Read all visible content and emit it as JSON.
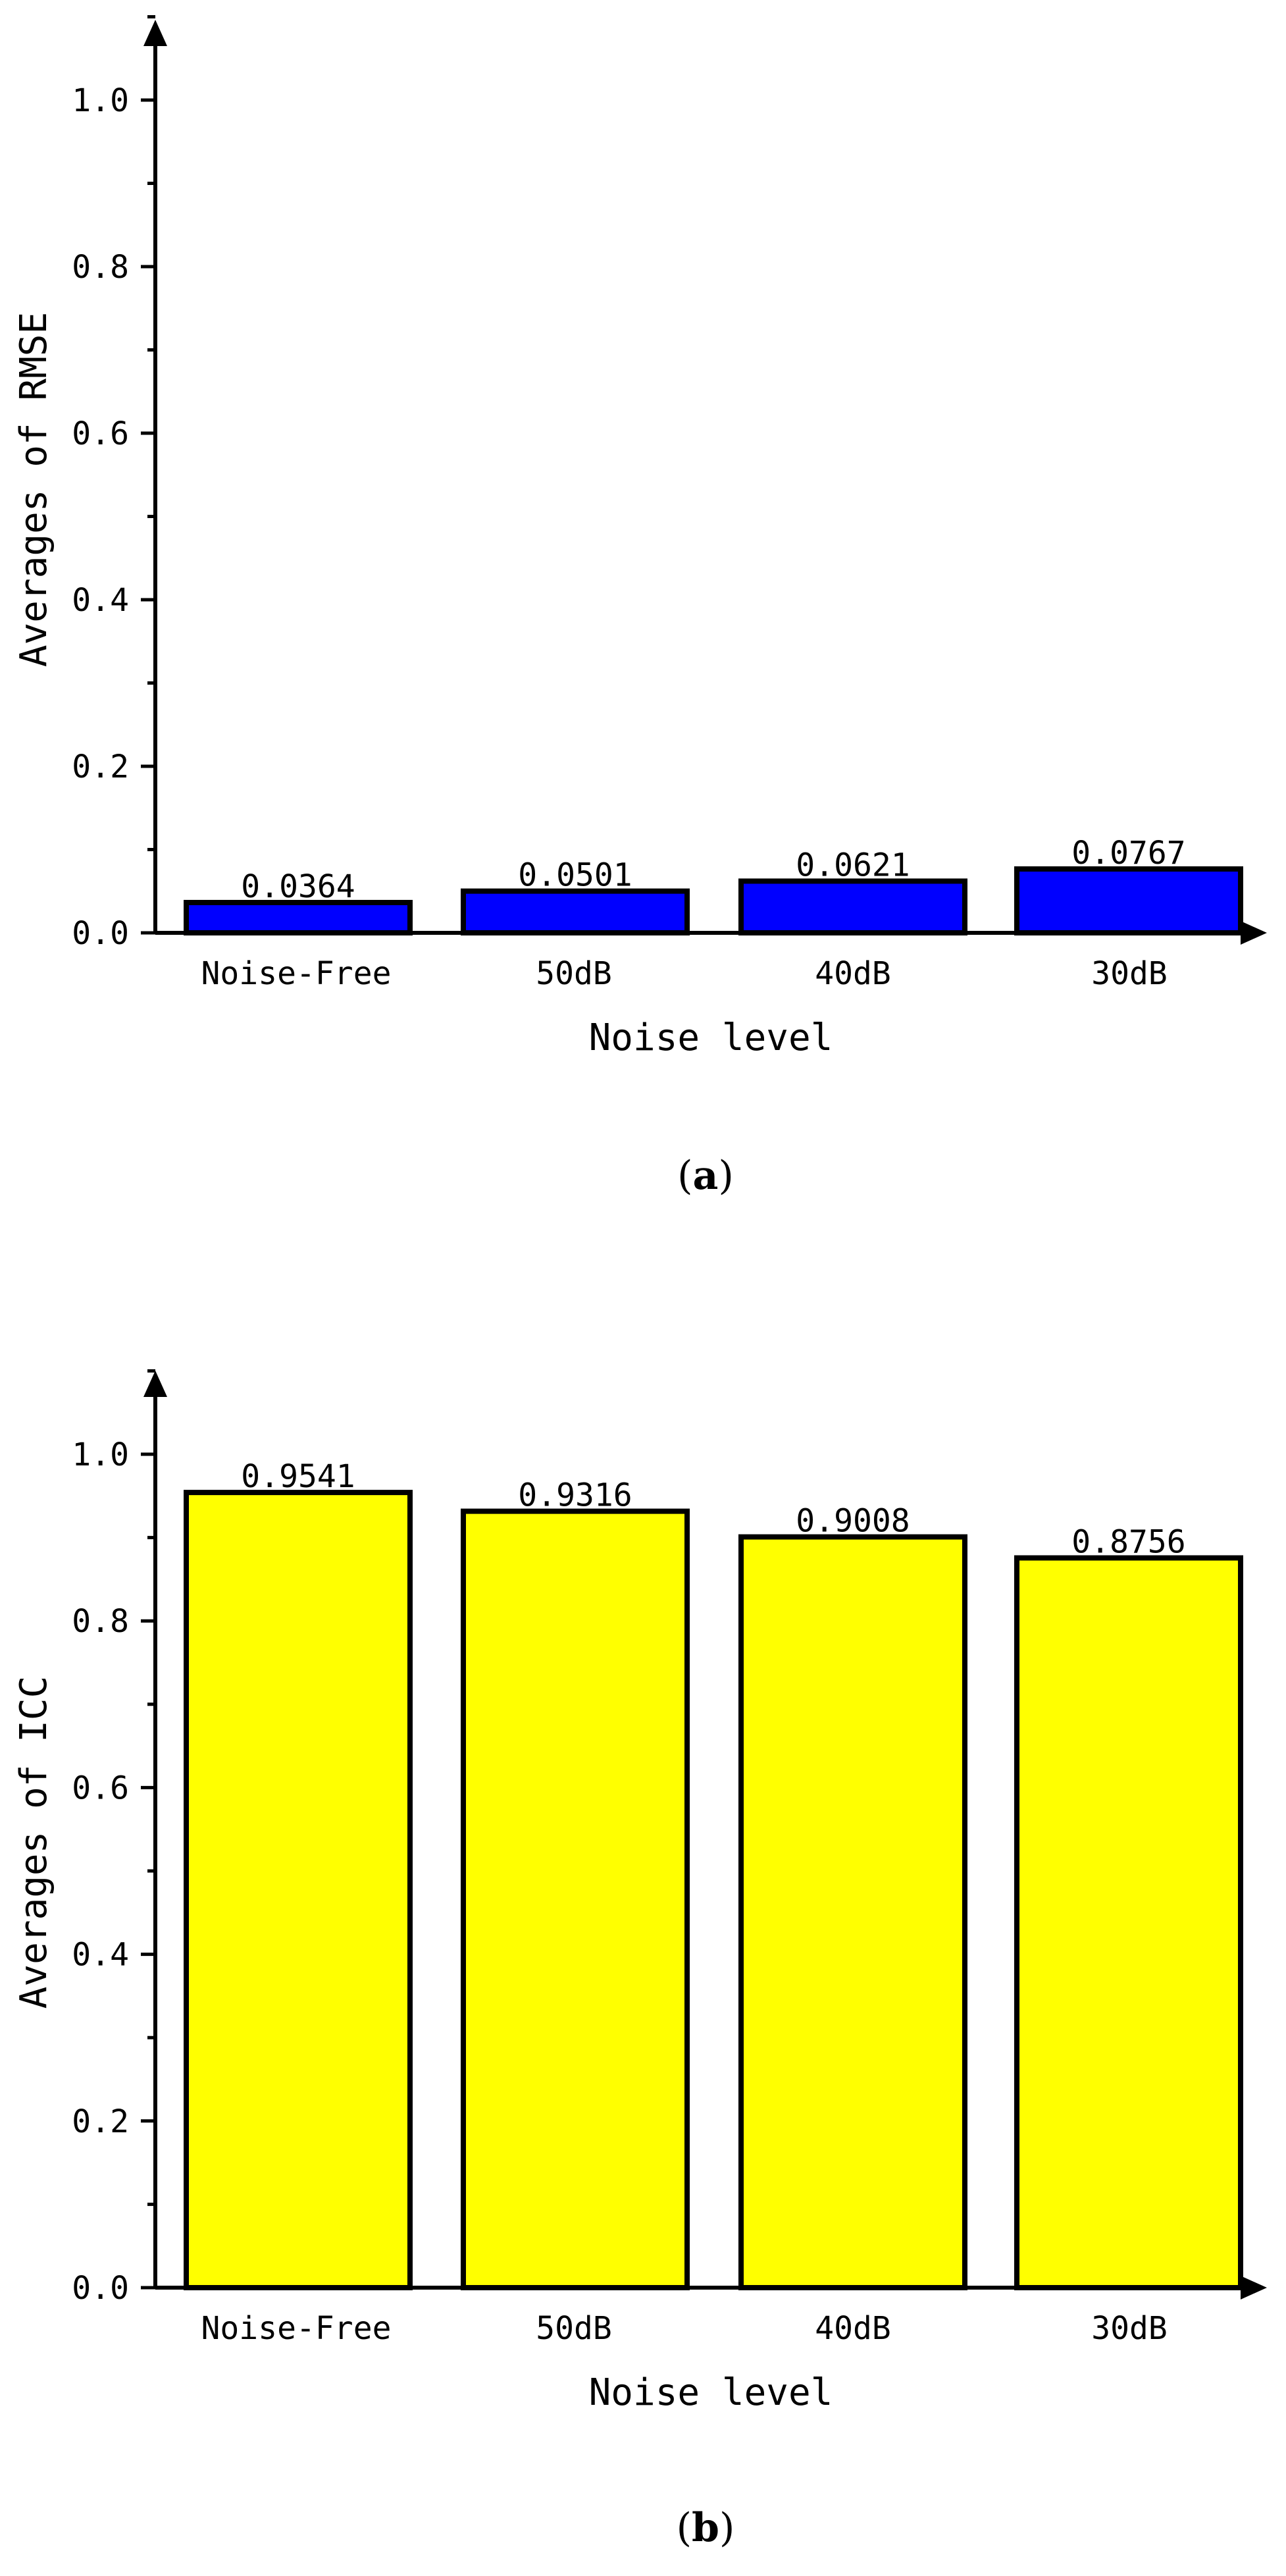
{
  "chart_data": [
    {
      "type": "bar",
      "panel_label": "a",
      "categories": [
        "Noise-Free",
        "50dB",
        "40dB",
        "30dB"
      ],
      "values": [
        0.0364,
        0.0501,
        0.0621,
        0.0767
      ],
      "data_labels": [
        "0.0364",
        "0.0501",
        "0.0621",
        "0.0767"
      ],
      "xlabel": "Noise level",
      "ylabel": "Averages of RMSE",
      "ylim": [
        0,
        1.1
      ],
      "yticks": [
        0.0,
        0.2,
        0.4,
        0.6,
        0.8,
        1.0
      ],
      "ytick_labels": [
        "0.0",
        "0.2",
        "0.4",
        "0.6",
        "0.8",
        "1.0"
      ],
      "bar_color": "#0000ff",
      "grid": false
    },
    {
      "type": "bar",
      "panel_label": "b",
      "categories": [
        "Noise-Free",
        "50dB",
        "40dB",
        "30dB"
      ],
      "values": [
        0.9541,
        0.9316,
        0.9008,
        0.8756
      ],
      "data_labels": [
        "0.9541",
        "0.9316",
        "0.9008",
        "0.8756"
      ],
      "xlabel": "Noise level",
      "ylabel": "Averages of ICC",
      "ylim": [
        0,
        1.1
      ],
      "yticks": [
        0.0,
        0.2,
        0.4,
        0.6,
        0.8,
        1.0
      ],
      "ytick_labels": [
        "0.0",
        "0.2",
        "0.4",
        "0.6",
        "0.8",
        "1.0"
      ],
      "bar_color": "#ffff00",
      "grid": false
    }
  ]
}
